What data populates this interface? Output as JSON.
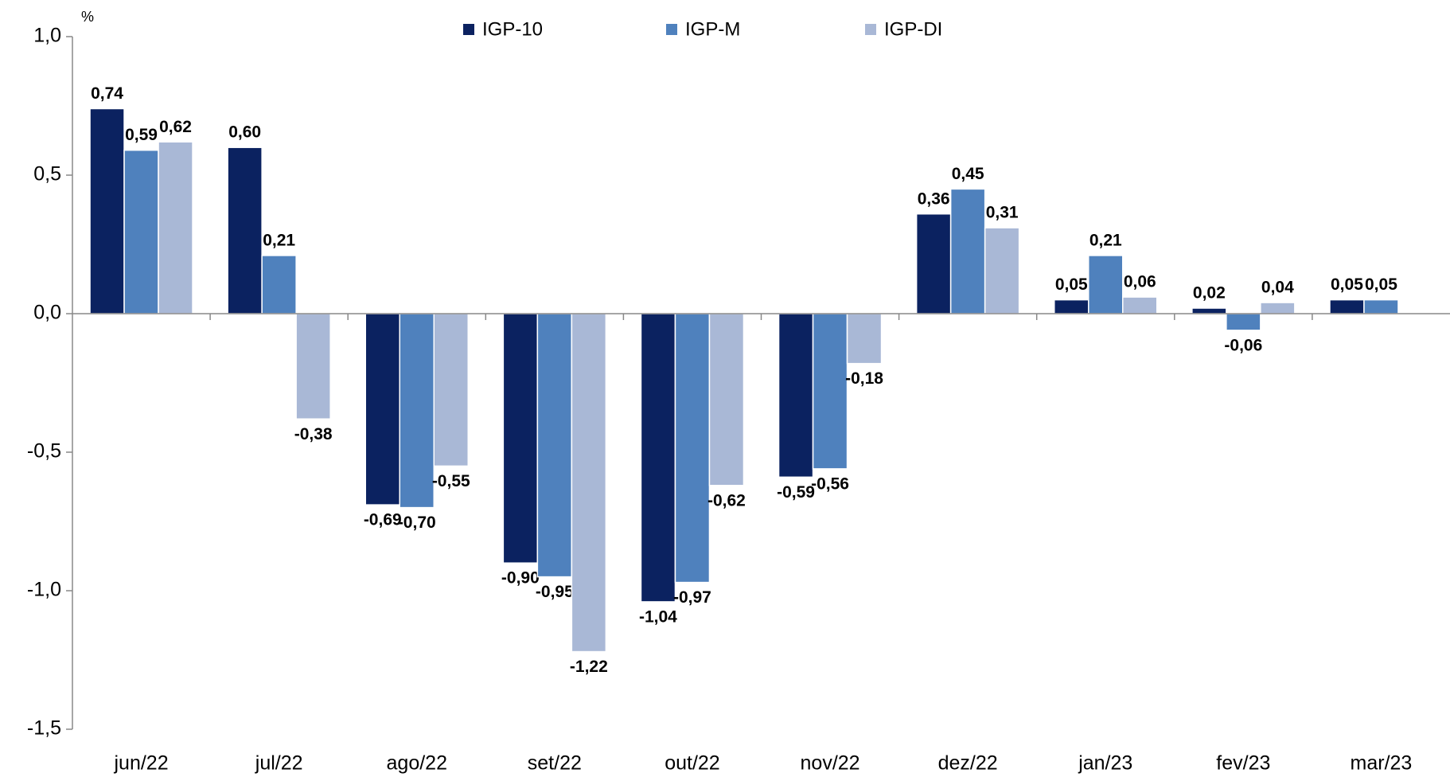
{
  "chart_data": {
    "type": "bar",
    "y_label": "%",
    "categories": [
      "jun/22",
      "jul/22",
      "ago/22",
      "set/22",
      "out/22",
      "nov/22",
      "dez/22",
      "jan/23",
      "fev/23",
      "mar/23"
    ],
    "series": [
      {
        "name": "IGP-10",
        "color": "#0b2260",
        "values": [
          0.74,
          0.6,
          -0.69,
          -0.9,
          -1.04,
          -0.59,
          0.36,
          0.05,
          0.02,
          0.05
        ],
        "value_labels": [
          "0,74",
          "0,60",
          "-0,69",
          "-0,90",
          "-1,04",
          "-0,59",
          "0,36",
          "0,05",
          "0,02",
          "0,05"
        ]
      },
      {
        "name": "IGP-M",
        "color": "#4f81bd",
        "values": [
          0.59,
          0.21,
          -0.7,
          -0.95,
          -0.97,
          -0.56,
          0.45,
          0.21,
          -0.06,
          0.05
        ],
        "value_labels": [
          "0,59",
          "0,21",
          "-0,70",
          "-0,95",
          "-0,97",
          "-0,56",
          "0,45",
          "0,21",
          "-0,06",
          "0,05"
        ]
      },
      {
        "name": "IGP-DI",
        "color": "#a9b8d6",
        "values": [
          0.62,
          -0.38,
          -0.55,
          -1.22,
          -0.62,
          -0.18,
          0.31,
          0.06,
          0.04,
          null
        ],
        "value_labels": [
          "0,62",
          "-0,38",
          "-0,55",
          "-1,22",
          "-0,62",
          "-0,18",
          "0,31",
          "0,06",
          "0,04",
          null
        ]
      }
    ],
    "ylim": [
      -1.5,
      1.0
    ],
    "yticks": [
      {
        "value": -1.5,
        "label": "-1,5"
      },
      {
        "value": -1.0,
        "label": "-1,0"
      },
      {
        "value": -0.5,
        "label": "-0,5"
      },
      {
        "value": 0,
        "label": "0,0"
      },
      {
        "value": 0.5,
        "label": "0,5"
      },
      {
        "value": 1.0,
        "label": "1,0"
      }
    ],
    "legend": "top"
  }
}
